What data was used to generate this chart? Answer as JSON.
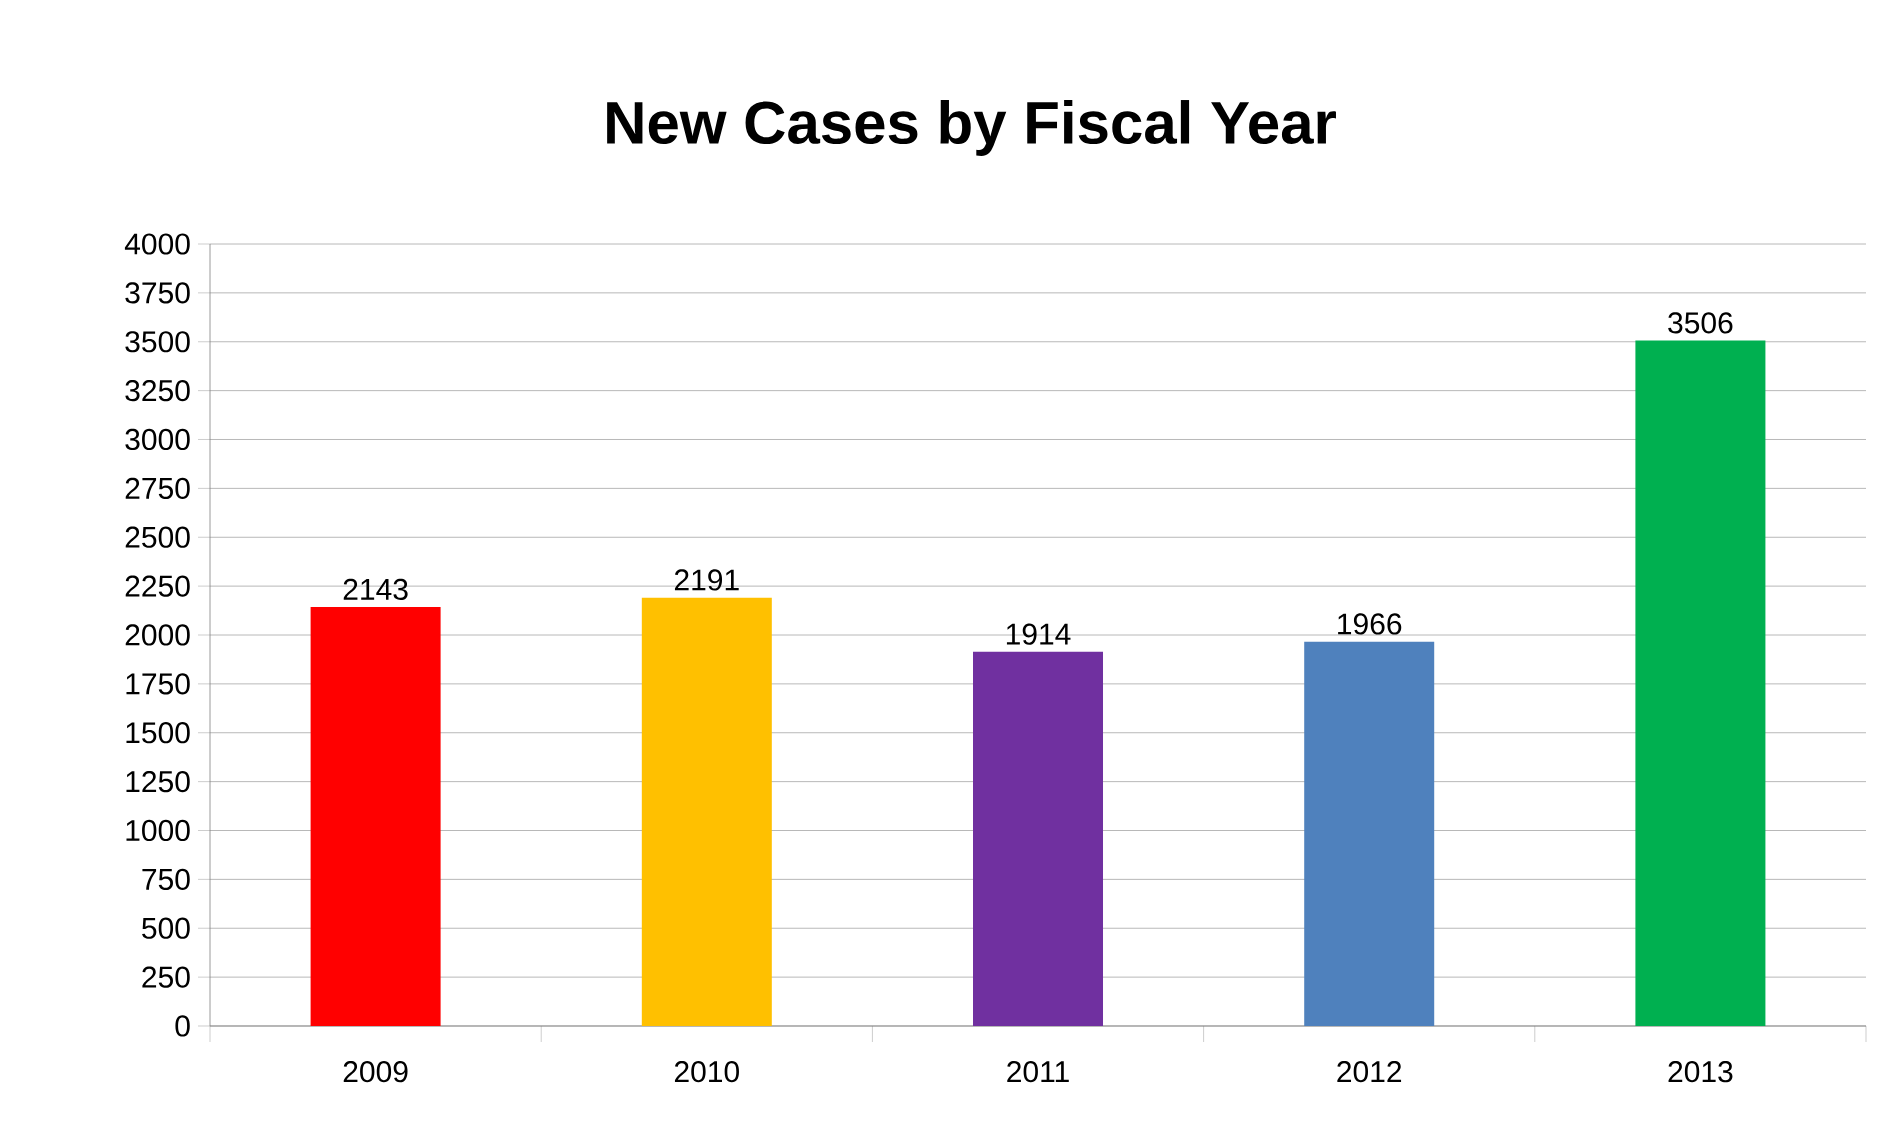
{
  "chart_data": {
    "type": "bar",
    "title": "New Cases by Fiscal Year",
    "categories": [
      "2009",
      "2010",
      "2011",
      "2012",
      "2013"
    ],
    "values": [
      2143,
      2191,
      1914,
      1966,
      3506
    ],
    "colors": [
      "#ff0000",
      "#ffc000",
      "#7030a0",
      "#4f81bd",
      "#00b050"
    ],
    "ylim": [
      0,
      4000
    ],
    "yticks": [
      0,
      250,
      500,
      750,
      1000,
      1250,
      1500,
      1750,
      2000,
      2250,
      2500,
      2750,
      3000,
      3250,
      3500,
      3750,
      4000
    ],
    "grid": "y",
    "data_labels": true
  }
}
